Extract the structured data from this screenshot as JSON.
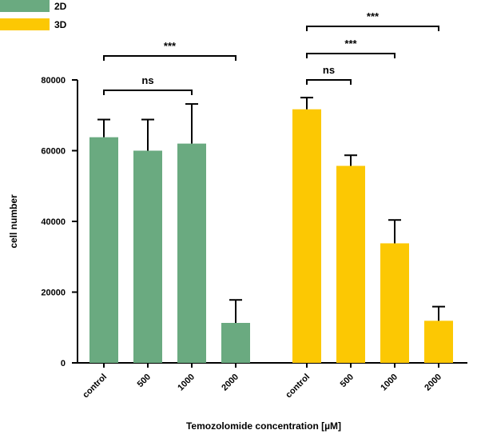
{
  "chart_data": {
    "type": "bar",
    "xlabel": "Temozolomide concentration [µM]",
    "ylabel": "cell number",
    "ylim": [
      0,
      80000
    ],
    "yticks": [
      "0",
      "20000",
      "40000",
      "60000",
      "80000"
    ],
    "ytick_values": [
      0,
      20000,
      40000,
      60000,
      80000
    ],
    "categories": [
      "control",
      "500",
      "1000",
      "2000"
    ],
    "legend_position": "top-left",
    "series": [
      {
        "name": "2D",
        "color": "#6aaa80",
        "values": [
          63800,
          60000,
          62000,
          11300
        ],
        "errors": [
          5000,
          8800,
          11200,
          6500
        ]
      },
      {
        "name": "3D",
        "color": "#fcc803",
        "values": [
          71700,
          55700,
          33800,
          11900
        ],
        "errors": [
          3300,
          3000,
          6600,
          4000
        ]
      }
    ],
    "significance": [
      {
        "series": "2D",
        "from": "control",
        "to": "1000",
        "label": "ns"
      },
      {
        "series": "2D",
        "from": "control",
        "to": "2000",
        "label": "***"
      },
      {
        "series": "3D",
        "from": "control",
        "to": "500",
        "label": "ns"
      },
      {
        "series": "3D",
        "from": "control",
        "to": "1000",
        "label": "***"
      },
      {
        "series": "3D",
        "from": "control",
        "to": "2000",
        "label": "***"
      }
    ]
  }
}
